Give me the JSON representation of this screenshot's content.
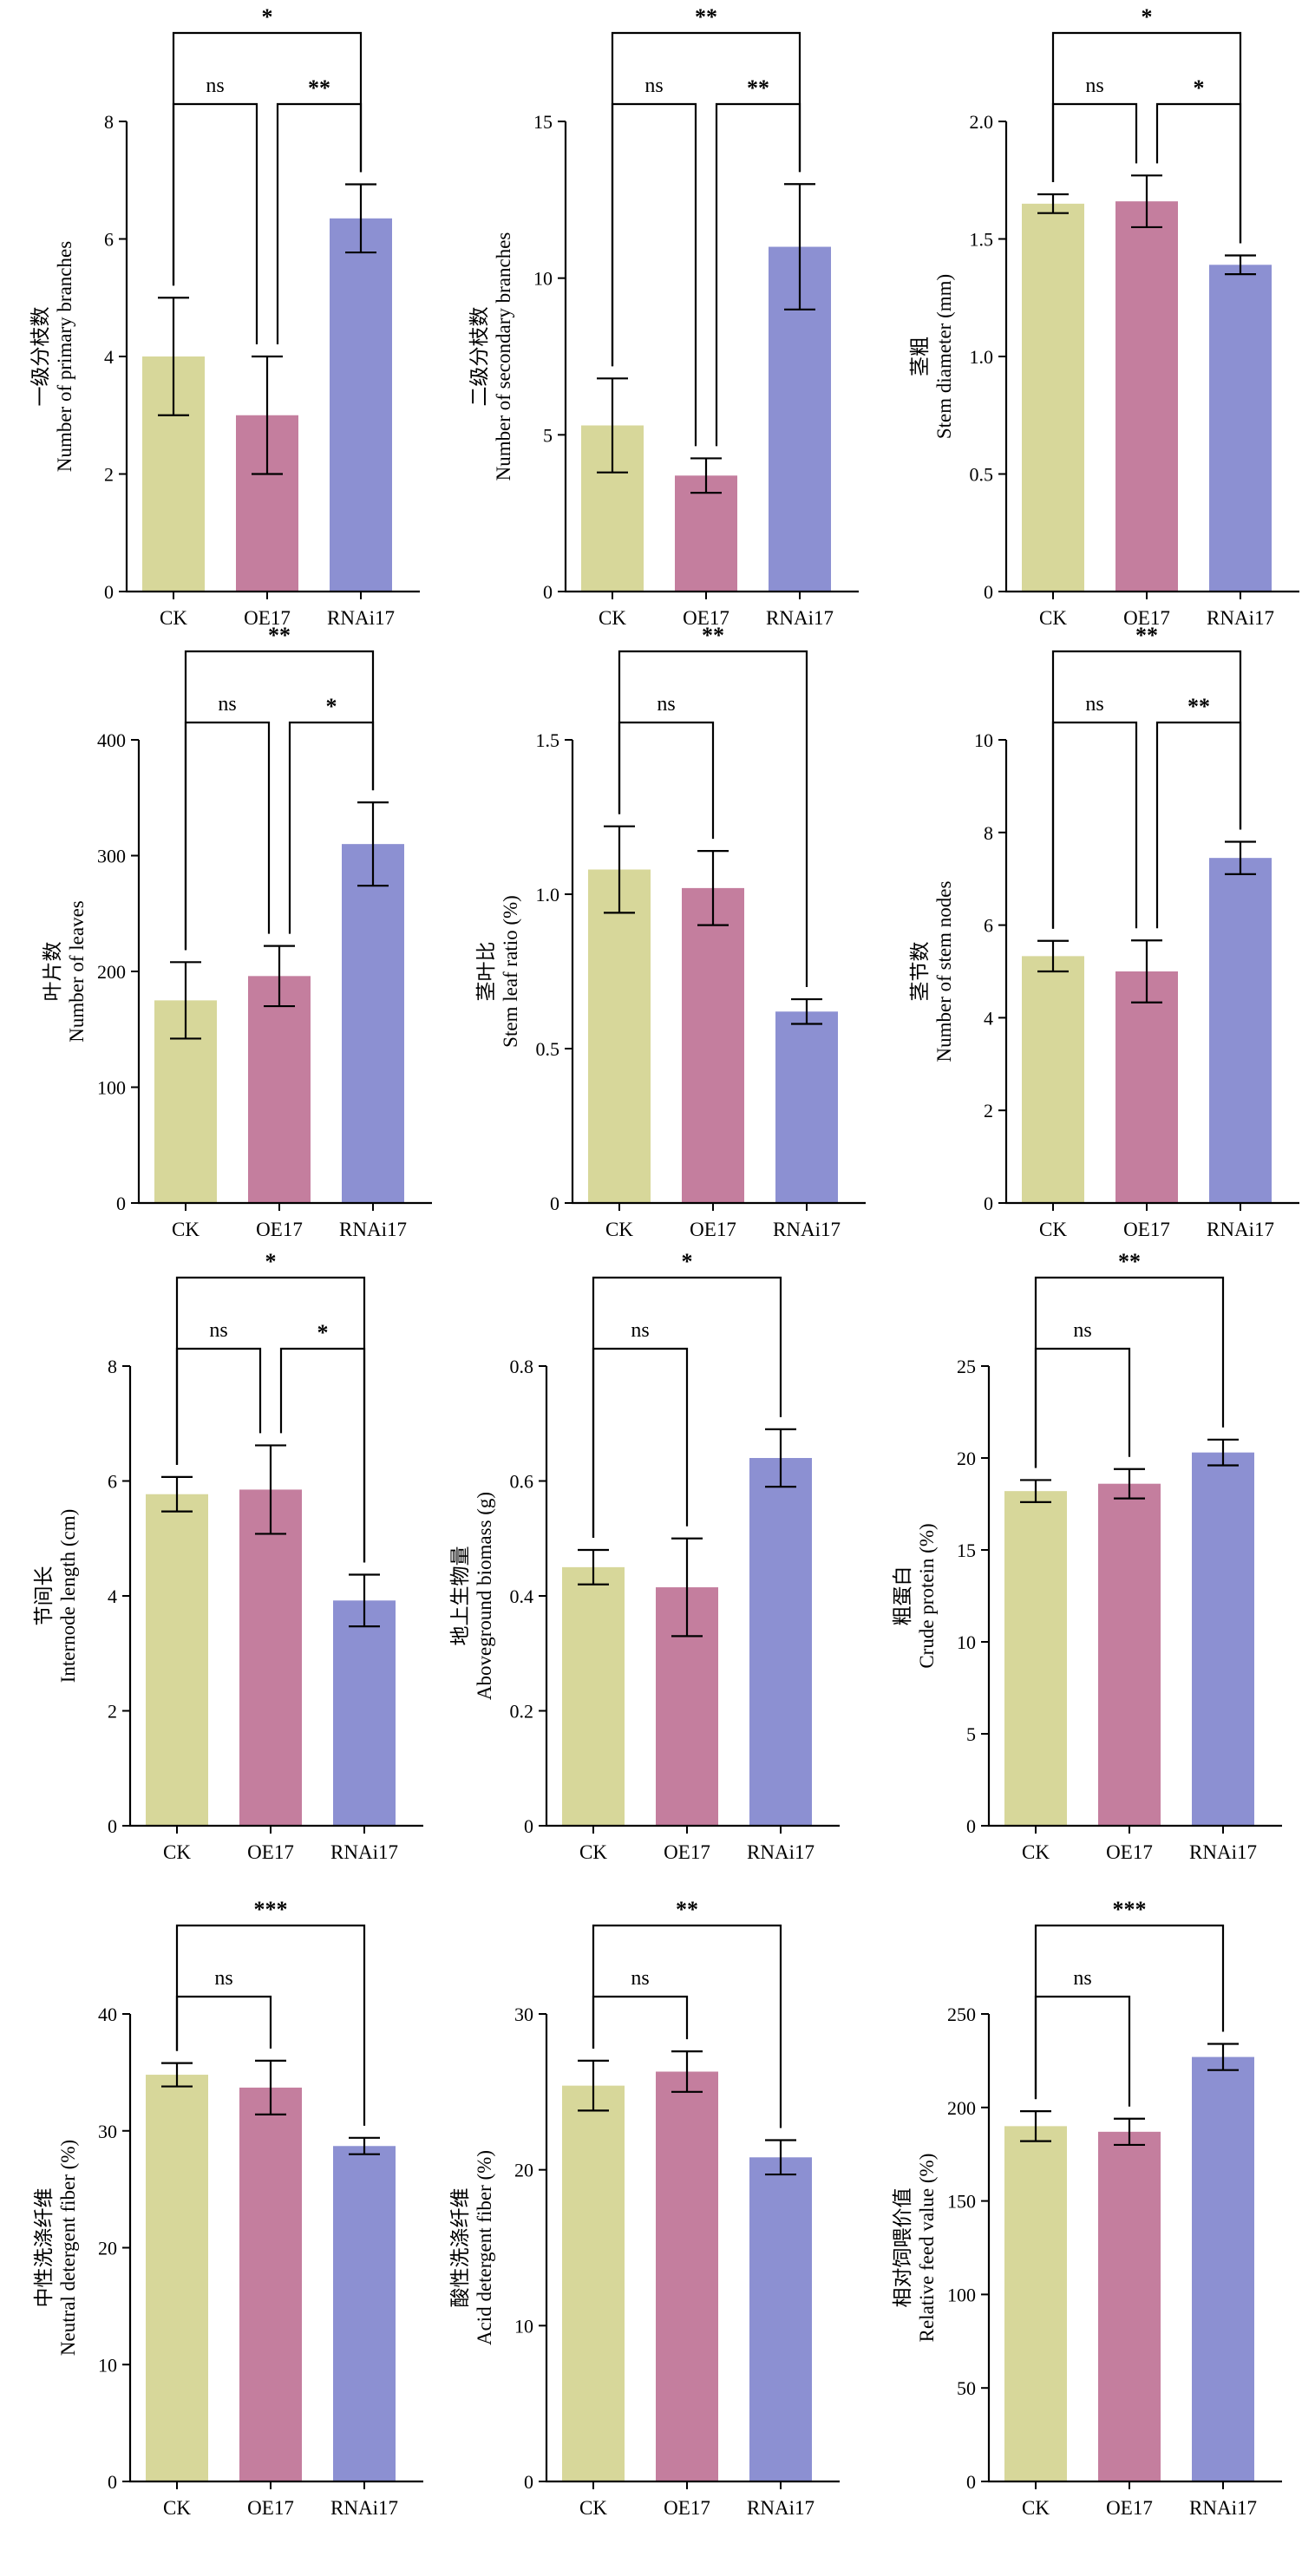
{
  "colors": {
    "CK": "#d7d79a",
    "OE17": "#c47e9e",
    "RNAi17": "#8c90d2",
    "axis": "#000000"
  },
  "chart_data": [
    {
      "type": "bar",
      "categories": [
        "CK",
        "OE17",
        "RNAi17"
      ],
      "values": [
        4.0,
        3.0,
        6.35
      ],
      "errors": [
        1.0,
        1.0,
        0.58
      ],
      "ylim": [
        0,
        8
      ],
      "yticks": [
        "0",
        "2",
        "4",
        "6",
        "8"
      ],
      "ylabel_cn": "一级分枝数",
      "ylabel_en": "Number of primary branches",
      "significance": [
        {
          "from": 0,
          "to": 1,
          "label": "ns"
        },
        {
          "from": 1,
          "to": 2,
          "label": "**"
        },
        {
          "from": 0,
          "to": 2,
          "label": "*"
        }
      ]
    },
    {
      "type": "bar",
      "categories": [
        "CK",
        "OE17",
        "RNAi17"
      ],
      "values": [
        5.3,
        3.7,
        11.0
      ],
      "errors": [
        1.5,
        0.55,
        2.0
      ],
      "ylim": [
        0,
        15
      ],
      "yticks": [
        "0",
        "5",
        "10",
        "15"
      ],
      "ylabel_cn": "二级分枝数",
      "ylabel_en": "Number of secondary branches",
      "significance": [
        {
          "from": 0,
          "to": 1,
          "label": "ns"
        },
        {
          "from": 1,
          "to": 2,
          "label": "**"
        },
        {
          "from": 0,
          "to": 2,
          "label": "**"
        }
      ]
    },
    {
      "type": "bar",
      "categories": [
        "CK",
        "OE17",
        "RNAi17"
      ],
      "values": [
        1.65,
        1.66,
        1.39
      ],
      "errors": [
        0.04,
        0.11,
        0.04
      ],
      "ylim": [
        0,
        2.0
      ],
      "yticks": [
        "0",
        "0.5",
        "1.0",
        "1.5",
        "2.0"
      ],
      "ylabel_cn": "茎粗",
      "ylabel_en": "Stem diameter (mm)",
      "significance": [
        {
          "from": 0,
          "to": 1,
          "label": "ns"
        },
        {
          "from": 1,
          "to": 2,
          "label": "*"
        },
        {
          "from": 0,
          "to": 2,
          "label": "*"
        }
      ]
    },
    {
      "type": "bar",
      "categories": [
        "CK",
        "OE17",
        "RNAi17"
      ],
      "values": [
        175,
        196,
        310
      ],
      "errors": [
        33,
        26,
        36
      ],
      "ylim": [
        0,
        400
      ],
      "yticks": [
        "0",
        "100",
        "200",
        "300",
        "400"
      ],
      "ylabel_cn": "叶片数",
      "ylabel_en": "Number of leaves",
      "significance": [
        {
          "from": 0,
          "to": 1,
          "label": "ns"
        },
        {
          "from": 1,
          "to": 2,
          "label": "*"
        },
        {
          "from": 0,
          "to": 2,
          "label": "**"
        }
      ]
    },
    {
      "type": "bar",
      "categories": [
        "CK",
        "OE17",
        "RNAi17"
      ],
      "values": [
        1.08,
        1.02,
        0.62
      ],
      "errors": [
        0.14,
        0.12,
        0.04
      ],
      "ylim": [
        0,
        1.5
      ],
      "yticks": [
        "0",
        "0.5",
        "1.0",
        "1.5"
      ],
      "ylabel_cn": "茎叶比",
      "ylabel_en": "Stem leaf ratio (%)",
      "significance": [
        {
          "from": 0,
          "to": 1,
          "label": "ns"
        },
        {
          "from": 0,
          "to": 2,
          "label": "**"
        }
      ]
    },
    {
      "type": "bar",
      "categories": [
        "CK",
        "OE17",
        "RNAi17"
      ],
      "values": [
        5.33,
        5.0,
        7.45
      ],
      "errors": [
        0.33,
        0.67,
        0.35
      ],
      "ylim": [
        0,
        10
      ],
      "yticks": [
        "0",
        "2",
        "4",
        "6",
        "8",
        "10"
      ],
      "ylabel_cn": "茎节数",
      "ylabel_en": "Number of stem nodes",
      "significance": [
        {
          "from": 0,
          "to": 1,
          "label": "ns"
        },
        {
          "from": 1,
          "to": 2,
          "label": "**"
        },
        {
          "from": 0,
          "to": 2,
          "label": "**"
        }
      ]
    },
    {
      "type": "bar",
      "categories": [
        "CK",
        "OE17",
        "RNAi17"
      ],
      "values": [
        5.77,
        5.85,
        3.92
      ],
      "errors": [
        0.3,
        0.77,
        0.45
      ],
      "ylim": [
        0,
        8
      ],
      "yticks": [
        "0",
        "2",
        "4",
        "6",
        "8"
      ],
      "ylabel_cn": "节间长",
      "ylabel_en": "Internode length (cm)",
      "significance": [
        {
          "from": 0,
          "to": 1,
          "label": "ns"
        },
        {
          "from": 1,
          "to": 2,
          "label": "*"
        },
        {
          "from": 0,
          "to": 2,
          "label": "*"
        }
      ]
    },
    {
      "type": "bar",
      "categories": [
        "CK",
        "OE17",
        "RNAi17"
      ],
      "values": [
        0.45,
        0.415,
        0.64
      ],
      "errors": [
        0.03,
        0.085,
        0.05
      ],
      "ylim": [
        0,
        0.8
      ],
      "yticks": [
        "0",
        "0.2",
        "0.4",
        "0.6",
        "0.8"
      ],
      "ylabel_cn": "地上生物量",
      "ylabel_en": "Aboveground biomass (g)",
      "significance": [
        {
          "from": 0,
          "to": 1,
          "label": "ns"
        },
        {
          "from": 0,
          "to": 2,
          "label": "*"
        }
      ]
    },
    {
      "type": "bar",
      "categories": [
        "CK",
        "OE17",
        "RNAi17"
      ],
      "values": [
        18.2,
        18.6,
        20.3
      ],
      "errors": [
        0.6,
        0.8,
        0.7
      ],
      "ylim": [
        0,
        25
      ],
      "yticks": [
        "0",
        "5",
        "10",
        "15",
        "20",
        "25"
      ],
      "ylabel_cn": "粗蛋白",
      "ylabel_en": "Crude protein (%)",
      "significance": [
        {
          "from": 0,
          "to": 1,
          "label": "ns"
        },
        {
          "from": 0,
          "to": 2,
          "label": "**"
        }
      ]
    },
    {
      "type": "bar",
      "categories": [
        "CK",
        "OE17",
        "RNAi17"
      ],
      "values": [
        34.8,
        33.7,
        28.7
      ],
      "errors": [
        1.0,
        2.3,
        0.7
      ],
      "ylim": [
        0,
        40
      ],
      "yticks": [
        "0",
        "10",
        "20",
        "30",
        "40"
      ],
      "ylabel_cn": "中性洗涤纤维",
      "ylabel_en": "Neutral detergent fiber (%)",
      "significance": [
        {
          "from": 0,
          "to": 1,
          "label": "ns"
        },
        {
          "from": 0,
          "to": 2,
          "label": "***"
        }
      ]
    },
    {
      "type": "bar",
      "categories": [
        "CK",
        "OE17",
        "RNAi17"
      ],
      "values": [
        25.4,
        26.3,
        20.8
      ],
      "errors": [
        1.6,
        1.3,
        1.1
      ],
      "ylim": [
        0,
        30
      ],
      "yticks": [
        "0",
        "10",
        "20",
        "30"
      ],
      "ylabel_cn": "酸性洗涤纤维",
      "ylabel_en": "Acid detergent fiber (%)",
      "significance": [
        {
          "from": 0,
          "to": 1,
          "label": "ns"
        },
        {
          "from": 0,
          "to": 2,
          "label": "**"
        }
      ]
    },
    {
      "type": "bar",
      "categories": [
        "CK",
        "OE17",
        "RNAi17"
      ],
      "values": [
        190,
        187,
        227
      ],
      "errors": [
        8,
        7,
        7
      ],
      "ylim": [
        0,
        250
      ],
      "yticks": [
        "0",
        "50",
        "100",
        "150",
        "200",
        "250"
      ],
      "ylabel_cn": "相对饲喂价值",
      "ylabel_en": "Relative feed value (%)",
      "significance": [
        {
          "from": 0,
          "to": 1,
          "label": "ns"
        },
        {
          "from": 0,
          "to": 2,
          "label": "***"
        }
      ]
    }
  ]
}
